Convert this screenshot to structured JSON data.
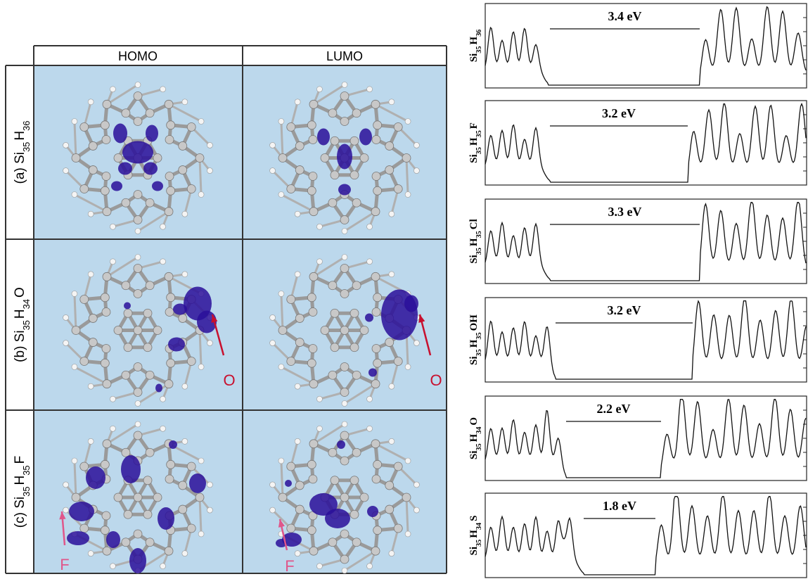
{
  "figure": {
    "columns": [
      "HOMO",
      "LUMO"
    ],
    "rows": [
      {
        "label": [
          {
            "text": "(a) Si"
          },
          {
            "text": "35",
            "sub": true
          },
          {
            "text": "H"
          },
          {
            "text": "36",
            "sub": true
          }
        ]
      },
      {
        "label": [
          {
            "text": "(b) Si"
          },
          {
            "text": "35",
            "sub": true
          },
          {
            "text": "H"
          },
          {
            "text": "34",
            "sub": true
          },
          {
            "text": "O"
          }
        ],
        "annotations": [
          "O",
          "O"
        ]
      },
      {
        "label": [
          {
            "text": "(c) Si"
          },
          {
            "text": "35",
            "sub": true
          },
          {
            "text": "H"
          },
          {
            "text": "35",
            "sub": true
          },
          {
            "text": "F"
          }
        ],
        "annotations": [
          "F",
          "F"
        ]
      }
    ]
  },
  "dos_panels": [
    {
      "label": [
        {
          "text": "Si"
        },
        {
          "text": "35",
          "sub": true
        },
        {
          "text": "H"
        },
        {
          "text": "36",
          "sub": true
        }
      ],
      "gap": "3.4 eV"
    },
    {
      "label": [
        {
          "text": "Si"
        },
        {
          "text": "35",
          "sub": true
        },
        {
          "text": "H"
        },
        {
          "text": "35",
          "sub": true
        },
        {
          "text": "F"
        }
      ],
      "gap": "3.2 eV"
    },
    {
      "label": [
        {
          "text": "Si"
        },
        {
          "text": "35",
          "sub": true
        },
        {
          "text": "H"
        },
        {
          "text": "35",
          "sub": true
        },
        {
          "text": "Cl"
        }
      ],
      "gap": "3.3 eV"
    },
    {
      "label": [
        {
          "text": "Si"
        },
        {
          "text": "35",
          "sub": true
        },
        {
          "text": "H"
        },
        {
          "text": "35",
          "sub": true
        },
        {
          "text": "OH"
        }
      ],
      "gap": "3.2 eV"
    },
    {
      "label": [
        {
          "text": "Si"
        },
        {
          "text": "35",
          "sub": true
        },
        {
          "text": "H"
        },
        {
          "text": "34",
          "sub": true
        },
        {
          "text": "O"
        }
      ],
      "gap": "2.2 eV"
    },
    {
      "label": [
        {
          "text": "Si"
        },
        {
          "text": "35",
          "sub": true
        },
        {
          "text": "H"
        },
        {
          "text": "34",
          "sub": true
        },
        {
          "text": "S"
        }
      ],
      "gap": "1.8 eV"
    }
  ]
}
